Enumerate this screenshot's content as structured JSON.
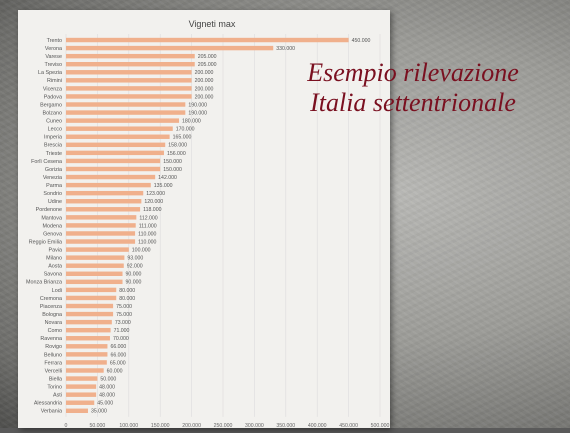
{
  "slide": {
    "headline_line1": "Esempio rilevazione",
    "headline_line2": "Italia settentrionale"
  },
  "chart_data": {
    "type": "bar",
    "orientation": "horizontal",
    "title": "Vigneti max",
    "bar_color": "#f0b08c",
    "xlim": [
      0,
      500000
    ],
    "xticks": [
      "0",
      "50.000",
      "100.000",
      "150.000",
      "200.000",
      "250.000",
      "300.000",
      "350.000",
      "400.000",
      "450.000",
      "500.000"
    ],
    "grid": true,
    "categories": [
      "Trento",
      "Verona",
      "Varese",
      "Treviso",
      "La Spezia",
      "Rimini",
      "Vicenza",
      "Padova",
      "Bergamo",
      "Bolzano",
      "Cuneo",
      "Lecco",
      "Imperia",
      "Brescia",
      "Trieste",
      "Forlì Cesena",
      "Gorizia",
      "Venezia",
      "Parma",
      "Sondrio",
      "Udine",
      "Pordenone",
      "Mantova",
      "Modena",
      "Genova",
      "Reggio Emilia",
      "Pavia",
      "Milano",
      "Aosta",
      "Savona",
      "Monza Brianza",
      "Lodi",
      "Cremona",
      "Piacenza",
      "Bologna",
      "Novara",
      "Como",
      "Ravenna",
      "Rovigo",
      "Belluno",
      "Ferrara",
      "Vercelli",
      "Biella",
      "Torino",
      "Asti",
      "Alessandria",
      "Verbania"
    ],
    "values": [
      450000,
      330000,
      205000,
      205000,
      200000,
      200000,
      200000,
      200000,
      190000,
      190000,
      180000,
      170000,
      165000,
      158000,
      156000,
      150000,
      150000,
      142000,
      135000,
      123000,
      120000,
      118000,
      112000,
      111000,
      110000,
      110000,
      100000,
      93000,
      92000,
      90000,
      90000,
      80000,
      80000,
      75000,
      75000,
      73000,
      71000,
      70000,
      66000,
      66000,
      65000,
      60000,
      50000,
      48000,
      48000,
      45000,
      35000
    ],
    "value_labels": [
      "450.000",
      "330.000",
      "205.000",
      "205.000",
      "200.000",
      "200.000",
      "200.000",
      "200.000",
      "190.000",
      "190.000",
      "180.000",
      "170.000",
      "165.000",
      "158.000",
      "156.000",
      "150.000",
      "150.000",
      "142.000",
      "135.000",
      "123.000",
      "120.000",
      "118.000",
      "112.000",
      "111.000",
      "110.000",
      "110.000",
      "100.000",
      "93.000",
      "92.000",
      "90.000",
      "90.000",
      "80.000",
      "80.000",
      "75.000",
      "75.000",
      "73.000",
      "71.000",
      "70.000",
      "66.000",
      "66.000",
      "65.000",
      "60.000",
      "50.000",
      "48.000",
      "48.000",
      "45.000",
      "35.000"
    ]
  }
}
